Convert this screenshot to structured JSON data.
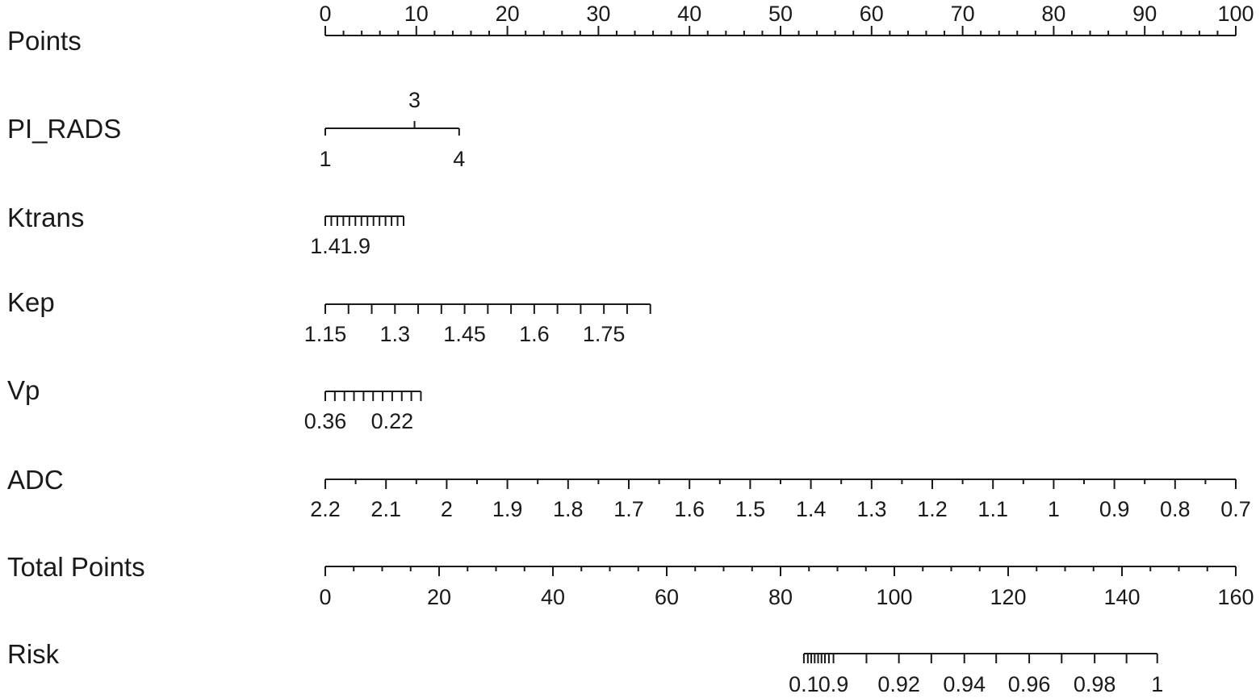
{
  "chart_data": {
    "type": "nomogram",
    "axes": [
      {
        "id": "points",
        "label": "Points",
        "range": [
          0,
          100
        ],
        "major_ticks": [
          0,
          10,
          20,
          30,
          40,
          50,
          60,
          70,
          80,
          90,
          100
        ],
        "minor_step": 2,
        "tick_labels": [
          "0",
          "10",
          "20",
          "30",
          "40",
          "50",
          "60",
          "70",
          "80",
          "90",
          "100"
        ]
      },
      {
        "id": "pi-rads",
        "label": "PI_RADS",
        "categories": [
          {
            "value": "1",
            "points": 0
          },
          {
            "value": "3",
            "points": 9.8
          },
          {
            "value": "4",
            "points": 14.7
          }
        ]
      },
      {
        "id": "ktrans",
        "label": "Ktrans",
        "values": [
          1.4,
          1.5,
          1.6,
          1.7,
          1.8,
          1.9,
          2.0,
          2.1,
          2.2,
          2.3,
          2.4,
          2.5,
          2.6,
          2.7
        ],
        "points_range": [
          0,
          8.6
        ],
        "tick_labels": [
          {
            "value": "1.4",
            "index": 0
          },
          {
            "value": "1.9",
            "index": 5
          }
        ]
      },
      {
        "id": "kep",
        "label": "Kep",
        "values": [
          1.15,
          1.2,
          1.25,
          1.3,
          1.35,
          1.4,
          1.45,
          1.5,
          1.55,
          1.6,
          1.65,
          1.7,
          1.75,
          1.8,
          1.85
        ],
        "points_range": [
          0,
          35.7
        ],
        "tick_labels": [
          {
            "value": "1.15",
            "index": 0
          },
          {
            "value": "1.3",
            "index": 3
          },
          {
            "value": "1.45",
            "index": 6
          },
          {
            "value": "1.6",
            "index": 9
          },
          {
            "value": "1.75",
            "index": 12
          }
        ]
      },
      {
        "id": "vp",
        "label": "Vp",
        "values": [
          0.36,
          0.34,
          0.32,
          0.3,
          0.28,
          0.26,
          0.24,
          0.22,
          0.2,
          0.18,
          0.16
        ],
        "points_range": [
          0,
          10.5
        ],
        "tick_labels": [
          {
            "value": "0.36",
            "index": 0
          },
          {
            "value": "0.22",
            "index": 7
          }
        ]
      },
      {
        "id": "adc",
        "label": "ADC",
        "range": [
          2.2,
          0.7
        ],
        "points_range": [
          0,
          100
        ],
        "major_ticks": [
          2.2,
          2.1,
          2.0,
          1.9,
          1.8,
          1.7,
          1.6,
          1.5,
          1.4,
          1.3,
          1.2,
          1.1,
          1.0,
          0.9,
          0.8,
          0.7
        ],
        "tick_labels": [
          "2.2",
          "2.1",
          "2",
          "1.9",
          "1.8",
          "1.7",
          "1.6",
          "1.5",
          "1.4",
          "1.3",
          "1.2",
          "1.1",
          "1",
          "0.9",
          "0.8",
          "0.7"
        ]
      },
      {
        "id": "total-points",
        "label": "Total Points",
        "range": [
          0,
          160
        ],
        "major_ticks": [
          0,
          20,
          40,
          60,
          80,
          100,
          120,
          140,
          160
        ],
        "minor_step": 5,
        "tick_labels": [
          "0",
          "20",
          "40",
          "60",
          "80",
          "100",
          "120",
          "140",
          "160"
        ]
      },
      {
        "id": "risk",
        "label": "Risk",
        "ticks": [
          {
            "value": 0.1,
            "total_points": 84.1,
            "label": "0.1"
          },
          {
            "value": 0.2,
            "total_points": 84.8
          },
          {
            "value": 0.3,
            "total_points": 85.4
          },
          {
            "value": 0.4,
            "total_points": 86.0
          },
          {
            "value": 0.5,
            "total_points": 86.6
          },
          {
            "value": 0.6,
            "total_points": 87.2
          },
          {
            "value": 0.7,
            "total_points": 87.8
          },
          {
            "value": 0.8,
            "total_points": 88.5
          },
          {
            "value": 0.9,
            "total_points": 89.3,
            "label": "0.9"
          },
          {
            "value": 0.91,
            "total_points": 95.1
          },
          {
            "value": 0.92,
            "total_points": 100.8,
            "label": "0.92"
          },
          {
            "value": 0.93,
            "total_points": 106.5
          },
          {
            "value": 0.94,
            "total_points": 112.3,
            "label": "0.94"
          },
          {
            "value": 0.95,
            "total_points": 117.9
          },
          {
            "value": 0.96,
            "total_points": 123.7,
            "label": "0.96"
          },
          {
            "value": 0.97,
            "total_points": 129.4
          },
          {
            "value": 0.98,
            "total_points": 135.2,
            "label": "0.98"
          },
          {
            "value": 0.99,
            "total_points": 140.8
          },
          {
            "value": 1,
            "total_points": 146.2,
            "label": "1"
          }
        ]
      }
    ]
  }
}
